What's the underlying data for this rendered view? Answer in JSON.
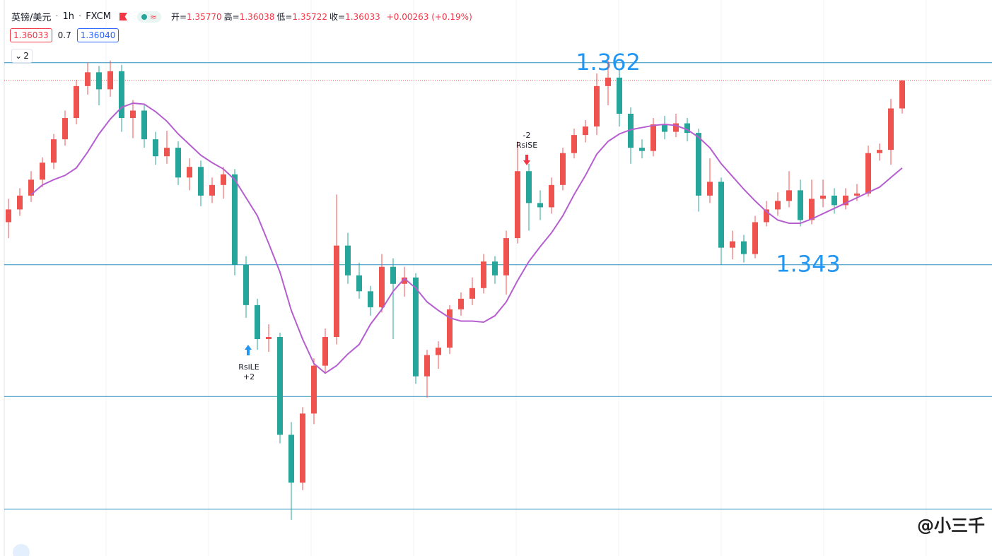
{
  "header": {
    "symbol": "英镑/美元",
    "interval": "1h",
    "source": "FXCM",
    "ohlc": [
      {
        "name": "开=",
        "value": "1.35770"
      },
      {
        "name": "高=",
        "value": "1.36038"
      },
      {
        "name": "低=",
        "value": "1.35722"
      },
      {
        "name": "收=",
        "value": "1.36033"
      }
    ],
    "change": "+0.00263 (+0.19%)",
    "bid": "1.36033",
    "spread": "0.7",
    "ask": "1.36040",
    "collapse": "2"
  },
  "watermark": "@小三千",
  "chart_data": {
    "type": "candlestick",
    "up_color": "#ef5350",
    "down_color": "#26a69a",
    "ylim": [
      1.3156,
      1.3679
    ],
    "open": [
      1.347,
      1.3482,
      1.3495,
      1.351,
      1.3526,
      1.3548,
      1.3568,
      1.3598,
      1.3611,
      1.3595,
      1.3612,
      1.3568,
      1.3575,
      1.3548,
      1.3532,
      1.354,
      1.3512,
      1.3522,
      1.3495,
      1.3505,
      1.3515,
      1.343,
      1.3392,
      1.336,
      1.3362,
      1.327,
      1.3225,
      1.329,
      1.3335,
      1.3362,
      1.3448,
      1.342,
      1.3405,
      1.339,
      1.3428,
      1.3412,
      1.3418,
      1.3325,
      1.3345,
      1.3352,
      1.3388,
      1.3398,
      1.3408,
      1.3433,
      1.342,
      1.3455,
      1.3518,
      1.3488,
      1.3484,
      1.3505,
      1.3535,
      1.3552,
      1.356,
      1.3598,
      1.3606,
      1.3572,
      1.354,
      1.3537,
      1.3562,
      1.3555,
      1.3563,
      1.3554,
      1.3495,
      1.3508,
      1.3446,
      1.3452,
      1.344,
      1.347,
      1.3482,
      1.349,
      1.35,
      1.3472,
      1.3492,
      1.3495,
      1.3486,
      1.3495,
      1.3497,
      1.3535,
      1.3538,
      1.3577
    ],
    "high": [
      1.3492,
      1.3502,
      1.3518,
      1.3531,
      1.3553,
      1.3575,
      1.3604,
      1.362,
      1.3617,
      1.3622,
      1.3618,
      1.3585,
      1.358,
      1.3555,
      1.3556,
      1.3546,
      1.353,
      1.3528,
      1.3512,
      1.3522,
      1.352,
      1.3438,
      1.3398,
      1.3374,
      1.3366,
      1.3282,
      1.3296,
      1.3342,
      1.337,
      1.3496,
      1.346,
      1.3432,
      1.341,
      1.344,
      1.3436,
      1.3428,
      1.3422,
      1.335,
      1.3358,
      1.3392,
      1.3404,
      1.3418,
      1.344,
      1.3438,
      1.3462,
      1.3546,
      1.3525,
      1.35,
      1.3512,
      1.354,
      1.3558,
      1.3566,
      1.361,
      1.3622,
      1.3614,
      1.3578,
      1.3548,
      1.3568,
      1.357,
      1.3572,
      1.3568,
      1.3558,
      1.353,
      1.3512,
      1.3462,
      1.3458,
      1.3476,
      1.349,
      1.3498,
      1.3518,
      1.351,
      1.351,
      1.351,
      1.3502,
      1.3502,
      1.3506,
      1.3542,
      1.3544,
      1.3586,
      1.36038
    ],
    "low": [
      1.3455,
      1.3476,
      1.3489,
      1.3503,
      1.352,
      1.3542,
      1.3562,
      1.359,
      1.358,
      1.3588,
      1.3555,
      1.3549,
      1.354,
      1.3524,
      1.3525,
      1.3505,
      1.35,
      1.3485,
      1.3488,
      1.3492,
      1.342,
      1.338,
      1.335,
      1.3348,
      1.3262,
      1.319,
      1.3218,
      1.328,
      1.3328,
      1.3355,
      1.3412,
      1.3398,
      1.3382,
      1.3385,
      1.336,
      1.34,
      1.3318,
      1.3305,
      1.3332,
      1.3346,
      1.3382,
      1.3392,
      1.3403,
      1.3412,
      1.3402,
      1.345,
      1.3462,
      1.3472,
      1.3478,
      1.35,
      1.353,
      1.3545,
      1.3552,
      1.358,
      1.356,
      1.3525,
      1.353,
      1.3532,
      1.3548,
      1.355,
      1.3546,
      1.348,
      1.3488,
      1.343,
      1.3435,
      1.3432,
      1.3436,
      1.3466,
      1.3476,
      1.3484,
      1.3466,
      1.3468,
      1.3484,
      1.3478,
      1.3482,
      1.349,
      1.3494,
      1.3528,
      1.3524,
      1.35722
    ],
    "close": [
      1.3482,
      1.3495,
      1.351,
      1.3526,
      1.3548,
      1.3568,
      1.3598,
      1.3611,
      1.3595,
      1.3612,
      1.3568,
      1.3575,
      1.3548,
      1.3532,
      1.354,
      1.3512,
      1.3522,
      1.3495,
      1.3505,
      1.3515,
      1.343,
      1.3392,
      1.336,
      1.3362,
      1.327,
      1.3225,
      1.329,
      1.3335,
      1.3362,
      1.3448,
      1.342,
      1.3405,
      1.339,
      1.3428,
      1.3412,
      1.3418,
      1.3325,
      1.3345,
      1.3352,
      1.3388,
      1.3398,
      1.3408,
      1.3433,
      1.342,
      1.3455,
      1.3518,
      1.3488,
      1.3484,
      1.3505,
      1.3535,
      1.3552,
      1.356,
      1.3598,
      1.3606,
      1.3572,
      1.354,
      1.3537,
      1.3562,
      1.3555,
      1.3563,
      1.3554,
      1.3495,
      1.3508,
      1.3446,
      1.3452,
      1.344,
      1.347,
      1.3482,
      1.349,
      1.35,
      1.3472,
      1.3492,
      1.3495,
      1.3486,
      1.3495,
      1.3497,
      1.3535,
      1.3538,
      1.3577,
      1.36033
    ],
    "moving_average": {
      "color": "#b55fcf",
      "values": [
        null,
        null,
        1.3496,
        1.3505,
        1.351,
        1.3514,
        1.3521,
        1.3536,
        1.3553,
        1.3567,
        1.3578,
        1.3582,
        1.3581,
        1.3574,
        1.3565,
        1.3553,
        1.3543,
        1.3533,
        1.3526,
        1.352,
        1.351,
        1.3493,
        1.3476,
        1.345,
        1.3423,
        1.3387,
        1.336,
        1.3337,
        1.3328,
        1.3335,
        1.3346,
        1.3355,
        1.3374,
        1.3388,
        1.3405,
        1.3417,
        1.3408,
        1.3395,
        1.3387,
        1.338,
        1.3377,
        1.3377,
        1.3376,
        1.3382,
        1.3395,
        1.3415,
        1.3433,
        1.3447,
        1.346,
        1.3476,
        1.3496,
        1.3514,
        1.3534,
        1.3546,
        1.3553,
        1.3557,
        1.3559,
        1.3561,
        1.3562,
        1.3561,
        1.3557,
        1.355,
        1.354,
        1.3525,
        1.3513,
        1.3501,
        1.349,
        1.348,
        1.3472,
        1.3469,
        1.3469,
        1.3473,
        1.3478,
        1.3483,
        1.3488,
        1.3493,
        1.3498,
        1.3503,
        1.3512,
        1.3521
      ]
    },
    "levels": [
      {
        "value": 1.362,
        "label": "1.362"
      },
      {
        "value": 1.343,
        "label": "1.343"
      }
    ],
    "extra_levels": [
      1.3306,
      1.32
    ],
    "level_color": "#2a8fbd",
    "signals": [
      {
        "label": "RsiLE",
        "qty": "+2"
      },
      {
        "label": "RsiSE",
        "qty": "-2"
      }
    ]
  }
}
